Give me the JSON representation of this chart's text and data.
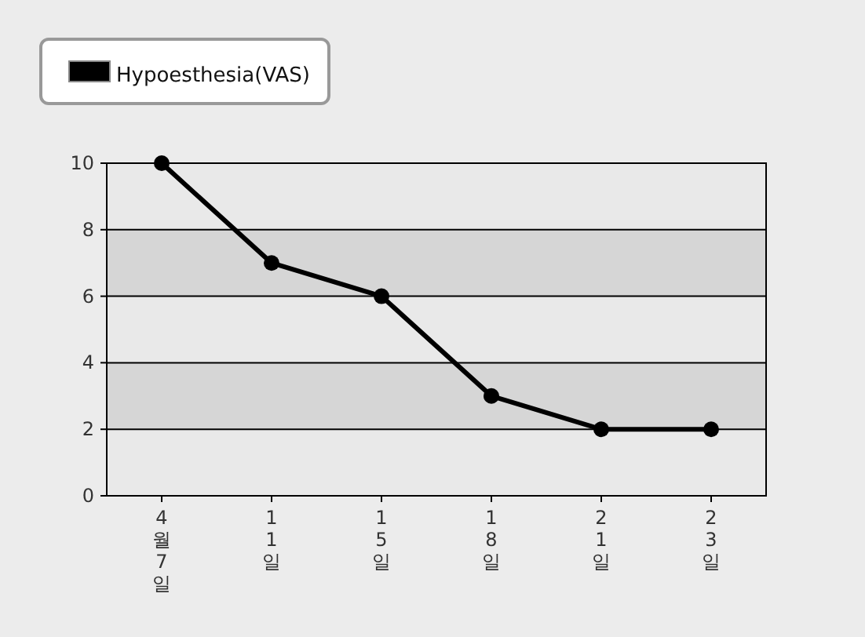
{
  "chart_data": {
    "type": "line",
    "categories": [
      "4월7일",
      "11일",
      "15일",
      "18일",
      "21일",
      "23일"
    ],
    "series": [
      {
        "name": "Hypoesthesia(VAS)",
        "color": "#000000",
        "values": [
          10,
          7,
          6,
          3,
          2,
          2
        ]
      }
    ],
    "ylim": [
      0,
      10
    ],
    "yticks": [
      0,
      2,
      4,
      6,
      8,
      10
    ],
    "grid": "y",
    "legend": "top left",
    "marker": "circle",
    "line_style": "solid"
  }
}
